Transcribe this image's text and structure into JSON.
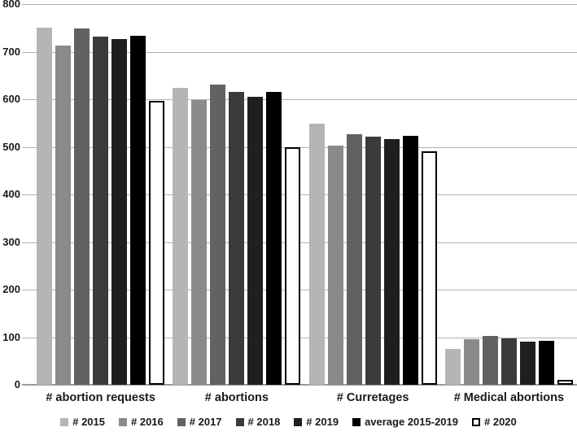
{
  "chart_data": {
    "type": "bar",
    "title": "",
    "xlabel": "",
    "ylabel": "",
    "categories": [
      "# abortion requests",
      "# abortions",
      "# Curretages",
      "# Medical abortions"
    ],
    "series": [
      {
        "name": "# 2015",
        "color": "#b5b5b5",
        "values": [
          751,
          624,
          548,
          76
        ]
      },
      {
        "name": "# 2016",
        "color": "#8a8a8a",
        "values": [
          713,
          598,
          503,
          96
        ]
      },
      {
        "name": "# 2017",
        "color": "#626262",
        "values": [
          749,
          630,
          527,
          102
        ]
      },
      {
        "name": "# 2018",
        "color": "#3b3b3b",
        "values": [
          731,
          616,
          521,
          97
        ]
      },
      {
        "name": "# 2019",
        "color": "#1f1f1f",
        "values": [
          726,
          606,
          517,
          90
        ]
      },
      {
        "name": "average 2015-2019",
        "color": "#000000",
        "values": [
          734,
          615,
          523,
          92
        ]
      },
      {
        "name": "# 2020",
        "color": "#ffffff",
        "outline": "#000000",
        "values": [
          597,
          500,
          490,
          10
        ]
      }
    ],
    "ylim": [
      0,
      800
    ],
    "y_ticks": [
      "800",
      "700",
      "600",
      "500",
      "400",
      "300",
      "200",
      "100",
      "0"
    ],
    "grid": true,
    "legend_position": "bottom"
  },
  "colors": {
    "gridline": "#b2b2b2",
    "axis": "#9a9a9a",
    "text": "#1a1a1a",
    "background": "#ffffff"
  }
}
